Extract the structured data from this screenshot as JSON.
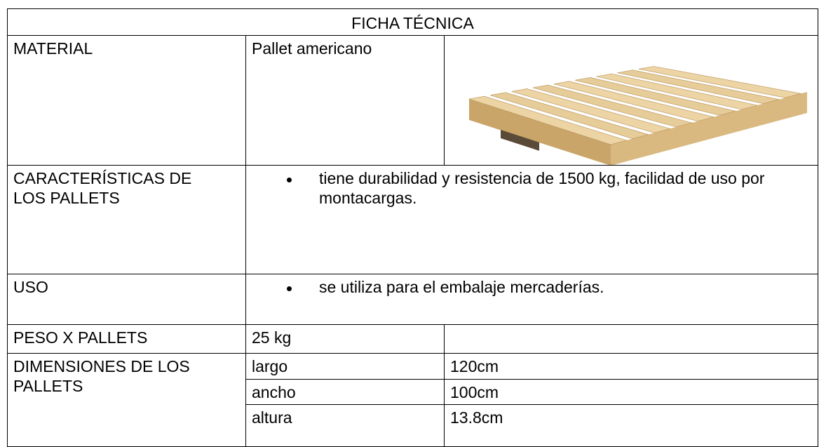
{
  "title": "FICHA TÉCNICA",
  "material": {
    "label": "MATERIAL",
    "value": "Pallet americano"
  },
  "caracteristicas": {
    "label": "CARACTERÍSTICAS DE LOS PALLETS",
    "bullets": [
      "tiene durabilidad y resistencia de 1500 kg, facilidad de uso por montacargas."
    ]
  },
  "uso": {
    "label": "USO",
    "bullets": [
      "se utiliza para el embalaje mercaderías."
    ]
  },
  "peso": {
    "label": "PESO X PALLETS",
    "value": "25 kg"
  },
  "dimensiones": {
    "label": "DIMENSIONES DE LOS PALLETS",
    "rows": [
      [
        "largo",
        "120cm"
      ],
      [
        "ancho",
        "100cm"
      ],
      [
        "altura",
        "13.8cm"
      ]
    ]
  }
}
